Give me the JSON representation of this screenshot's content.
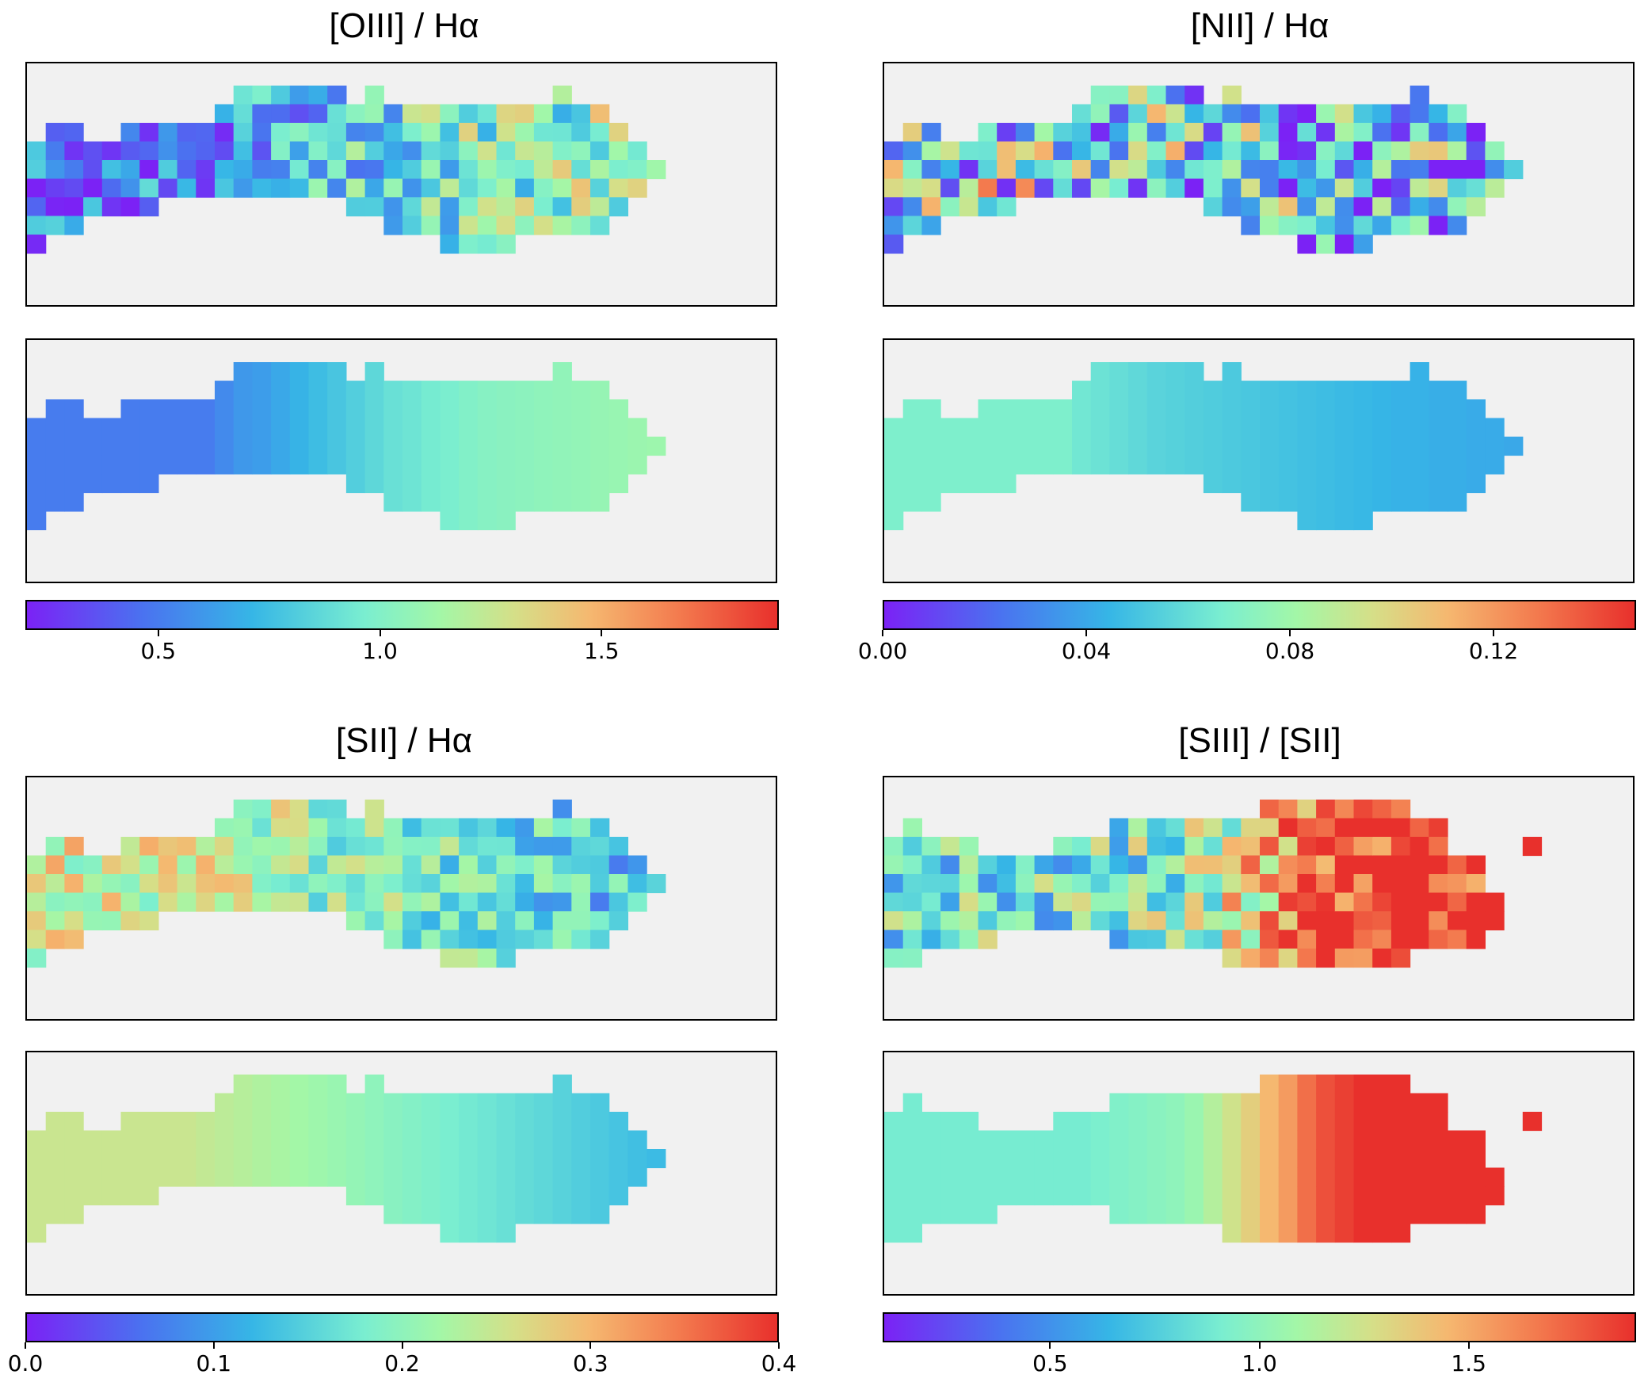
{
  "panels": [
    {
      "title": "[OIII] / Hα",
      "colorbar": {
        "vmin": 0.2,
        "vmax": 1.9,
        "ticks": [
          0.5,
          1.0,
          1.5
        ],
        "tick_labels": [
          "0.5",
          "1.0",
          "1.5"
        ]
      }
    },
    {
      "title": "[NII] / Hα",
      "colorbar": {
        "vmin": 0.0,
        "vmax": 0.148,
        "ticks": [
          0.0,
          0.04,
          0.08,
          0.12
        ],
        "tick_labels": [
          "0.00",
          "0.04",
          "0.08",
          "0.12"
        ]
      }
    },
    {
      "title": "[SII] / Hα",
      "colorbar": {
        "vmin": 0.0,
        "vmax": 0.4,
        "ticks": [
          0.0,
          0.1,
          0.2,
          0.3,
          0.4
        ],
        "tick_labels": [
          "0.0",
          "0.1",
          "0.2",
          "0.3",
          "0.4"
        ]
      }
    },
    {
      "title": "[SIII] / [SII]",
      "colorbar": {
        "vmin": 0.1,
        "vmax": 1.9,
        "ticks": [
          0.5,
          1.0,
          1.5
        ],
        "tick_labels": [
          "0.5",
          "1.0",
          "1.5"
        ]
      }
    }
  ],
  "chart_data": [
    {
      "type": "heatmap",
      "title": "[OIII] / Hα",
      "colormap": "rainbow",
      "vmin": 0.2,
      "vmax": 1.9,
      "column_trend_model": [
        0.5,
        0.5,
        0.5,
        0.5,
        0.5,
        0.5,
        0.5,
        0.5,
        0.5,
        0.5,
        0.55,
        0.6,
        0.62,
        0.66,
        0.7,
        0.74,
        0.78,
        0.82,
        0.86,
        0.9,
        0.92,
        0.95,
        0.97,
        1.0,
        1.02,
        1.03,
        1.04,
        1.05,
        1.06,
        1.07,
        1.08,
        1.09,
        1.1,
        1.11
      ],
      "colorbar_ticks": [
        0.5,
        1.0,
        1.5
      ]
    },
    {
      "type": "heatmap",
      "title": "[NII] / Hα",
      "colormap": "rainbow",
      "vmin": 0.0,
      "vmax": 0.148,
      "column_trend_model": [
        0.068,
        0.068,
        0.068,
        0.068,
        0.068,
        0.068,
        0.068,
        0.068,
        0.068,
        0.068,
        0.064,
        0.062,
        0.06,
        0.058,
        0.056,
        0.055,
        0.054,
        0.053,
        0.052,
        0.051,
        0.05,
        0.049,
        0.048,
        0.047,
        0.046,
        0.045,
        0.044,
        0.043,
        0.043,
        0.042,
        0.042,
        0.041,
        0.041,
        0.04
      ],
      "colorbar_ticks": [
        0.0,
        0.04,
        0.08,
        0.12
      ]
    },
    {
      "type": "heatmap",
      "title": "[SII] / Hα",
      "colormap": "rainbow",
      "vmin": 0.0,
      "vmax": 0.4,
      "column_trend_model": [
        0.25,
        0.25,
        0.25,
        0.25,
        0.25,
        0.25,
        0.25,
        0.25,
        0.25,
        0.245,
        0.24,
        0.235,
        0.23,
        0.225,
        0.22,
        0.215,
        0.21,
        0.205,
        0.2,
        0.195,
        0.19,
        0.185,
        0.18,
        0.175,
        0.17,
        0.165,
        0.16,
        0.155,
        0.15,
        0.145,
        0.14,
        0.135,
        0.13,
        0.125
      ],
      "colorbar_ticks": [
        0.0,
        0.1,
        0.2,
        0.3,
        0.4
      ]
    },
    {
      "type": "heatmap",
      "title": "[SIII] / [SII]",
      "colormap": "rainbow",
      "vmin": 0.1,
      "vmax": 1.9,
      "column_trend_model": [
        0.9,
        0.9,
        0.9,
        0.9,
        0.9,
        0.9,
        0.9,
        0.9,
        0.9,
        0.9,
        0.9,
        0.92,
        0.94,
        0.96,
        0.98,
        1.0,
        1.05,
        1.15,
        1.25,
        1.35,
        1.45,
        1.55,
        1.7,
        1.8,
        1.85,
        1.9,
        1.9,
        1.9,
        1.9,
        1.9,
        1.9,
        1.9,
        1.9,
        1.9,
        1.9,
        1.9
      ],
      "colorbar_ticks": [
        0.5,
        1.0,
        1.5
      ]
    }
  ]
}
